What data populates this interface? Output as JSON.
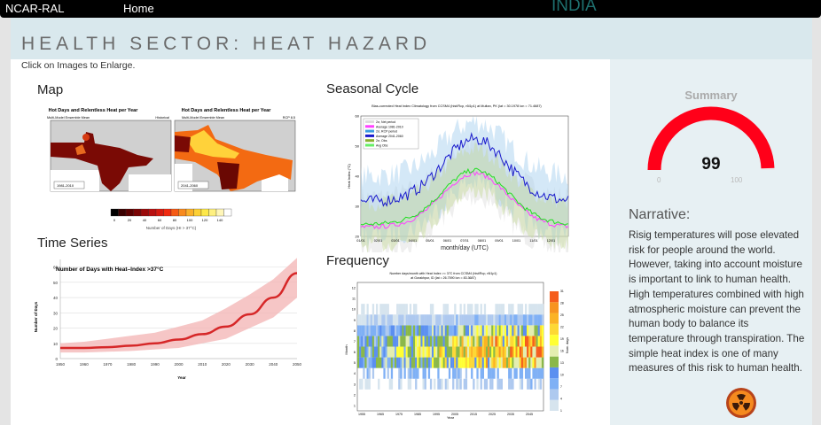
{
  "topbar": {
    "brand": "NCAR-RAL",
    "home": "Home",
    "country": "INDIA"
  },
  "header": {
    "title": "HEALTH SECTOR: HEAT HAZARD",
    "hint": "Click on Images to Enlarge."
  },
  "sections": {
    "map": "Map",
    "time_series": "Time Series",
    "seasonal": "Seasonal Cycle",
    "frequency": "Frequency"
  },
  "map": {
    "title": "Hot Days and Relentless Heat per Year",
    "subtitle": "Multi-Model Ensemble Mean",
    "left_tag": "Historical",
    "right_tag": "RCP 8.5",
    "left_period": "1981-2010",
    "right_period": "2041-2060",
    "colorbar_ticks": [
      "0",
      "20",
      "40",
      "60",
      "80",
      "100",
      "120",
      "140"
    ],
    "colorbar_label": "Number of Days (HI > 37°C)"
  },
  "time_series": {
    "title": "Number of Days with Heat–Index >37°C",
    "xlabel": "Year",
    "ylabel": "Number of Days",
    "x": [
      1950,
      1960,
      1970,
      1980,
      1990,
      2000,
      2010,
      2020,
      2030,
      2040,
      2050
    ],
    "mean": [
      7,
      7,
      7.5,
      8.5,
      10,
      12.5,
      16,
      21,
      29,
      40,
      56
    ],
    "lower": [
      4,
      4,
      4.5,
      5,
      6,
      7,
      10,
      13,
      20,
      27,
      40
    ],
    "upper": [
      10,
      11,
      13,
      15,
      17,
      21,
      25,
      33,
      42,
      52,
      66
    ],
    "yticks": [
      "0",
      "10",
      "20",
      "30",
      "40",
      "50",
      "60"
    ],
    "xticks": [
      "1950",
      "1960",
      "1970",
      "1980",
      "1990",
      "2000",
      "2010",
      "2020",
      "2030",
      "2040",
      "2050"
    ],
    "color": "#d62728"
  },
  "seasonal": {
    "title": "Bias-corrected Heat Index Climatology from CCSM4 (hist/Rcp, r6i1p1) at Multan, PK (lat = 30.1978  lon = 71.4687)",
    "ylabel": "Heat Index (°C)",
    "xlabel": "month/day (UTC)",
    "yticks": [
      "20",
      "30",
      "40",
      "50",
      "60"
    ],
    "xticks": [
      "01/01",
      "02/01",
      "03/01",
      "04/01",
      "05/01",
      "06/01",
      "07/01",
      "08/01",
      "09/01",
      "10/01",
      "11/01",
      "12/01"
    ],
    "legend": [
      "2σ, Net period",
      "Average 1981-2010",
      "2σ, RCP period",
      "Average 2041-2060",
      "2σ, Obs",
      "Avg Obs"
    ]
  },
  "frequency": {
    "title": "Number days/month with Heat Index >= 37C from CCSM4 (hist/Rcp, r6i1p1)",
    "subtitle": "at Gorakhpur, ID (lat = 26.7590  lon = 83.3687)",
    "ylabel": "Month",
    "xlabel": "Year",
    "cblabel": "Num. days",
    "yticks": [
      "1",
      "2",
      "3",
      "4",
      "5",
      "6",
      "7",
      "8",
      "9",
      "10",
      "11",
      "12"
    ],
    "xticks": [
      "1955",
      "1965",
      "1975",
      "1985",
      "1995",
      "2005",
      "2015",
      "2025",
      "2035",
      "2045"
    ],
    "cbticks": [
      "1",
      "4",
      "7",
      "10",
      "13",
      "16",
      "19",
      "22",
      "25",
      "28",
      "31"
    ]
  },
  "summary": {
    "title": "Summary",
    "value": 99,
    "min": "0",
    "max": "100",
    "color": "#ff0019"
  },
  "narrative": {
    "heading": "Narrative:",
    "text": "Risig temperatures will pose elevated risk for people around the world. However, taking into account moisture is important to link to human health. High temperatures combined with high atmospheric moisture can prevent the human body to balance its temperature through transpiration. The simple heat index is one of many measures of this risk to human health."
  },
  "badge": {
    "icon": "radiation-hazard-icon"
  }
}
